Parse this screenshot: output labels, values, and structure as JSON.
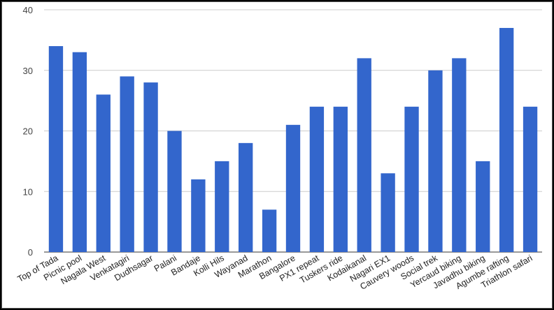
{
  "chart_data": {
    "type": "bar",
    "title": "",
    "xlabel": "",
    "ylabel": "",
    "ylim": [
      0,
      40
    ],
    "yticks": [
      0,
      10,
      20,
      30,
      40
    ],
    "grid": true,
    "bar_color": "#3366cc",
    "gridline_color": "#cccccc",
    "categories": [
      "Top of Tada",
      "Picnic pool",
      "Nagala West",
      "Venkatagiri",
      "Dudhsagar",
      "Palani",
      "Bandaje",
      "Kolli Hils",
      "Wayanad",
      "Marathon",
      "Bangalore",
      "PX1 repeat",
      "Tuskers ride",
      "Kodaikanal",
      "Nagari EX1",
      "Cauvery woods",
      "Social trek",
      "Yercaud biking",
      "Javadhu biking",
      "Agumbe rafting",
      "Triathlon safari"
    ],
    "values": [
      34,
      33,
      26,
      29,
      28,
      20,
      12,
      15,
      18,
      7,
      21,
      24,
      24,
      32,
      13,
      24,
      30,
      32,
      15,
      37,
      24
    ]
  }
}
